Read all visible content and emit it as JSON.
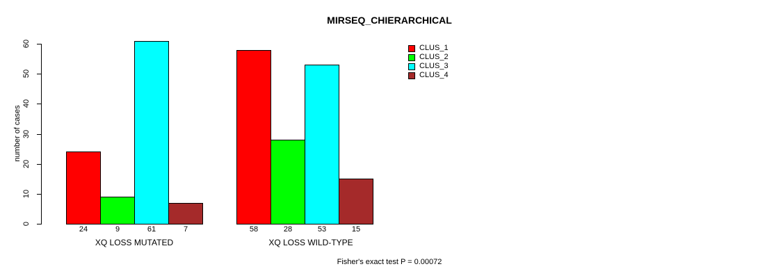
{
  "chart_data": {
    "type": "bar",
    "title": "MIRSEQ_CHIERARCHICAL",
    "ylabel": "number of cases",
    "xlabel": "",
    "ylim": [
      0,
      60
    ],
    "yticks": [
      0,
      10,
      20,
      30,
      40,
      50,
      60
    ],
    "grid": false,
    "legend_position": "top-right",
    "show_bar_value_labels": true,
    "bar_border_color": "#000000",
    "background_color": "#FFFFFF",
    "categories": [
      "XQ LOSS MUTATED",
      "XQ LOSS WILD-TYPE"
    ],
    "series": [
      {
        "name": "CLUS_1",
        "color": "#FF0000",
        "values": [
          24,
          58
        ]
      },
      {
        "name": "CLUS_2",
        "color": "#00FF00",
        "values": [
          9,
          28
        ]
      },
      {
        "name": "CLUS_3",
        "color": "#00FFFF",
        "values": [
          61,
          53
        ]
      },
      {
        "name": "CLUS_4",
        "color": "#A52A2A",
        "values": [
          7,
          15
        ]
      }
    ],
    "annotation": "Fisher's exact test P = 0.00072"
  }
}
